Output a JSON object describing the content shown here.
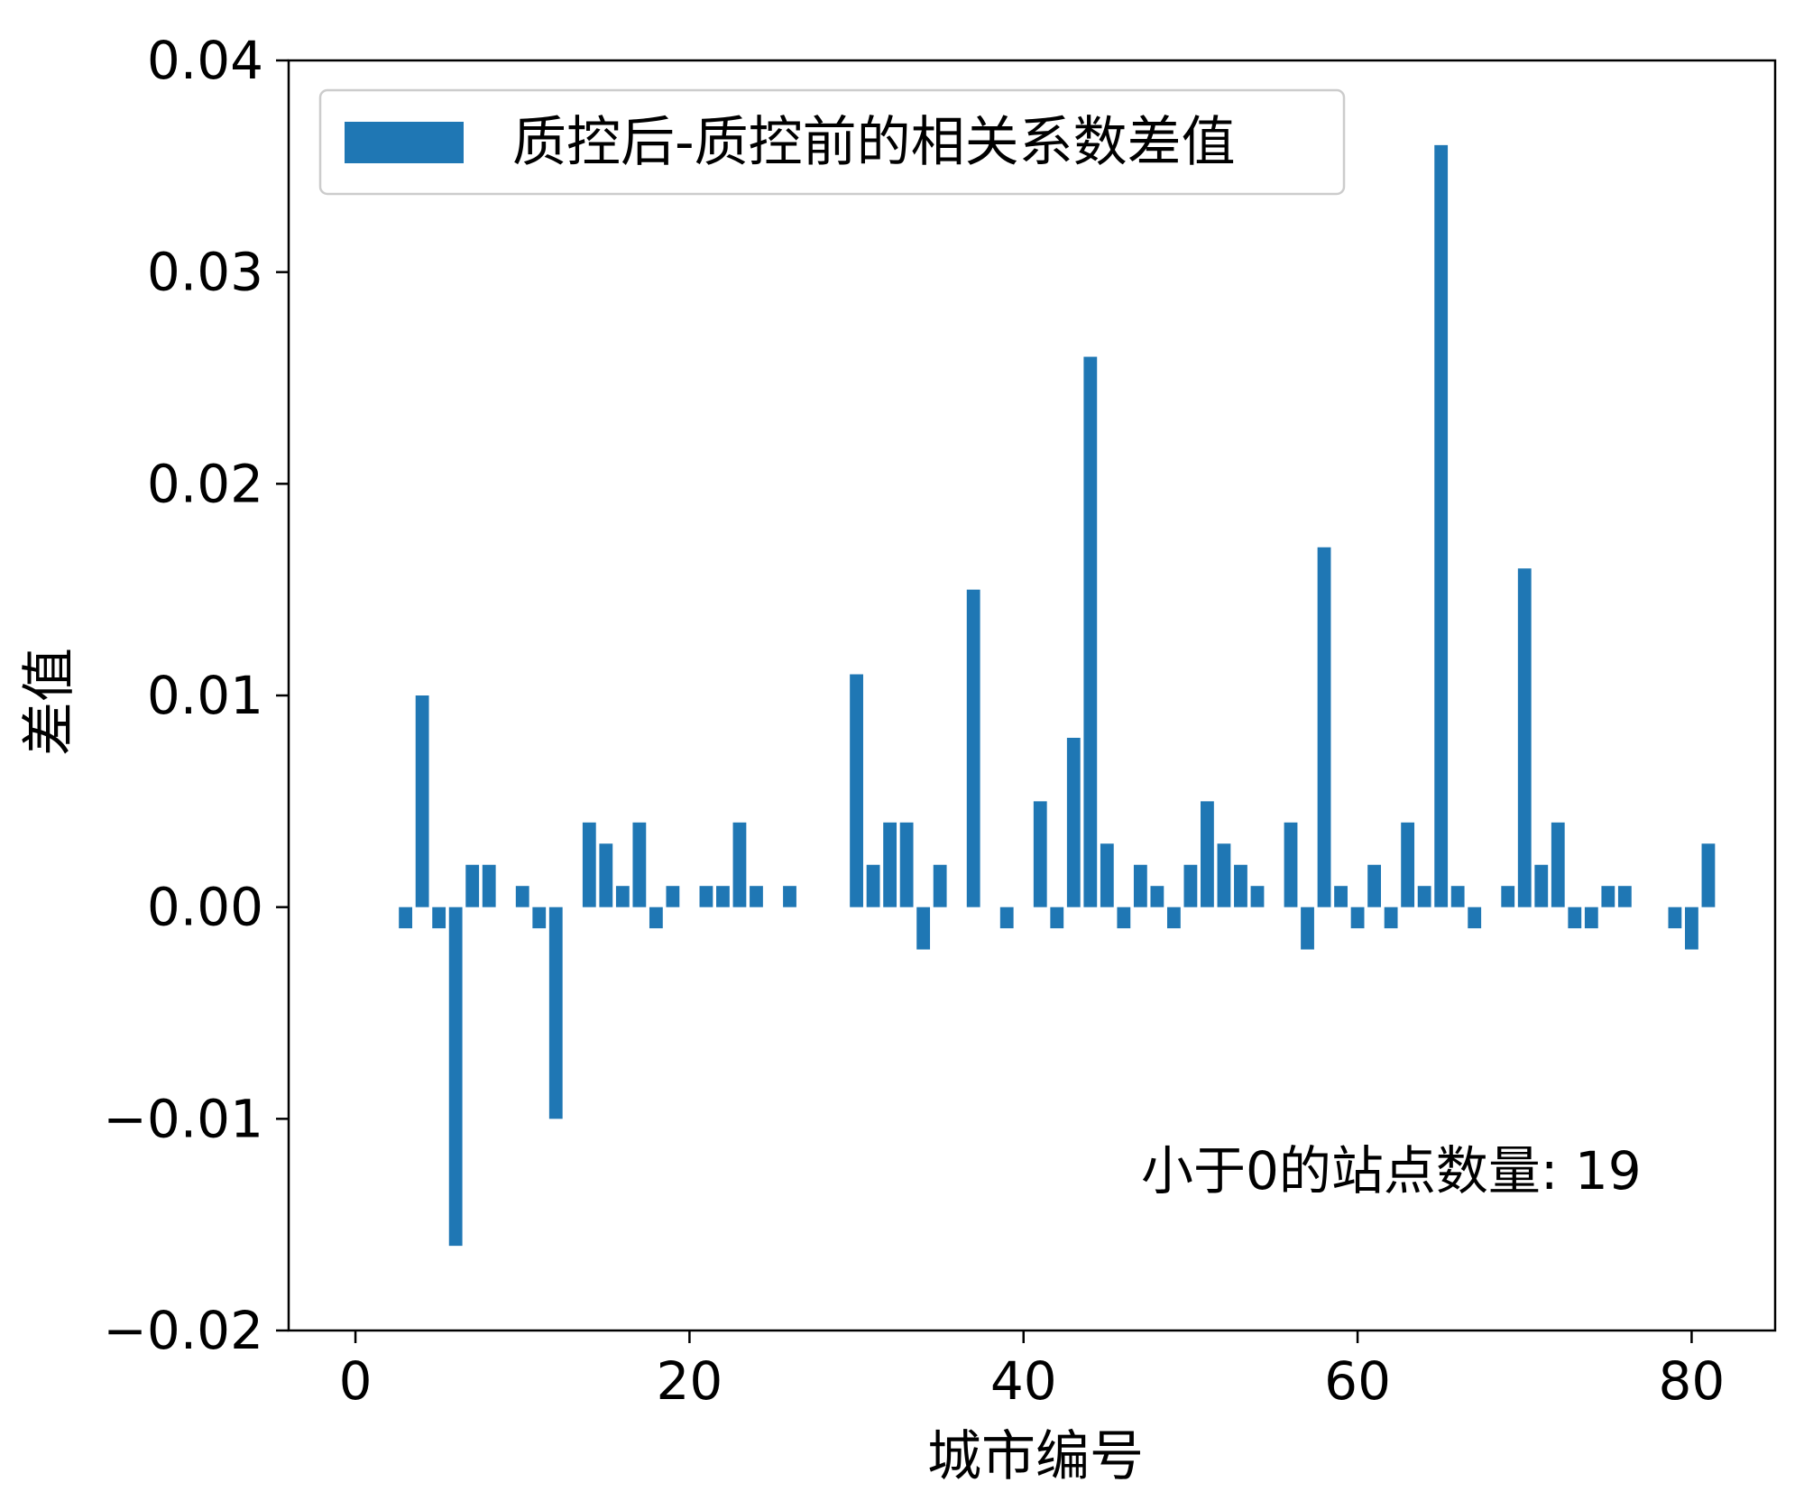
{
  "chart_data": {
    "type": "bar",
    "xlabel": "城市编号",
    "ylabel": "差值",
    "xlim": [
      -4,
      85
    ],
    "ylim": [
      -0.02,
      0.04
    ],
    "xticks": [
      0,
      20,
      40,
      60,
      80
    ],
    "xtick_labels": [
      "0",
      "20",
      "40",
      "60",
      "80"
    ],
    "yticks": [
      -0.02,
      -0.01,
      0.0,
      0.01,
      0.02,
      0.03,
      0.04
    ],
    "ytick_labels": [
      "−0.02",
      "−0.01",
      "0.00",
      "0.01",
      "0.02",
      "0.03",
      "0.04"
    ],
    "grid": false,
    "legend": {
      "position": "top-left",
      "entries": [
        "质控后-质控前的相关系数差值"
      ]
    },
    "annotation": "小于0的站点数量: 19",
    "color": "#1f77b4",
    "series": [
      {
        "name": "质控后-质控前的相关系数差值",
        "x": [
          3,
          4,
          5,
          6,
          7,
          8,
          10,
          11,
          12,
          14,
          15,
          16,
          17,
          18,
          19,
          21,
          22,
          23,
          24,
          26,
          30,
          31,
          32,
          33,
          34,
          35,
          37,
          39,
          41,
          42,
          43,
          44,
          45,
          46,
          47,
          48,
          49,
          50,
          51,
          52,
          53,
          54,
          56,
          57,
          58,
          59,
          60,
          61,
          62,
          63,
          64,
          65,
          66,
          67,
          69,
          70,
          71,
          72,
          73,
          74,
          75,
          76,
          79,
          80,
          81
        ],
        "values": [
          -0.001,
          0.01,
          -0.001,
          -0.016,
          0.002,
          0.002,
          0.001,
          -0.001,
          -0.01,
          0.004,
          0.003,
          0.001,
          0.004,
          -0.001,
          0.001,
          0.001,
          0.001,
          0.004,
          0.001,
          0.001,
          0.011,
          0.002,
          0.004,
          0.004,
          -0.002,
          0.002,
          0.015,
          -0.001,
          0.005,
          -0.001,
          0.008,
          0.026,
          0.003,
          -0.001,
          0.002,
          0.001,
          -0.001,
          0.002,
          0.005,
          0.003,
          0.002,
          0.001,
          0.004,
          -0.002,
          0.017,
          0.001,
          -0.001,
          0.002,
          -0.001,
          0.004,
          0.001,
          0.036,
          0.001,
          -0.001,
          0.001,
          0.016,
          0.002,
          0.004,
          -0.001,
          -0.001,
          0.001,
          0.001,
          -0.001,
          -0.002,
          0.003
        ]
      }
    ]
  }
}
